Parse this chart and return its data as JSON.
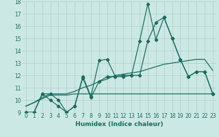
{
  "xlabel": "Humidex (Indice chaleur)",
  "x": [
    0,
    1,
    2,
    3,
    4,
    5,
    6,
    7,
    8,
    9,
    10,
    11,
    12,
    13,
    14,
    15,
    16,
    17,
    18,
    19,
    20,
    21,
    22,
    23
  ],
  "line1": [
    9,
    9,
    10.5,
    10,
    9.5,
    9,
    9.5,
    11.9,
    10.3,
    13.2,
    13.3,
    11.9,
    12.0,
    12.0,
    14.8,
    17.8,
    14.9,
    16.7,
    15.0,
    13.3,
    11.9,
    12.3,
    12.3,
    10.5
  ],
  "line2": [
    9,
    9,
    10.5,
    10.5,
    10.0,
    9.0,
    9.5,
    11.8,
    10.2,
    11.5,
    11.9,
    11.9,
    11.9,
    12.0,
    12.0,
    14.8,
    16.3,
    16.7,
    15.0,
    13.3,
    11.9,
    12.3,
    12.3,
    10.5
  ],
  "line3": [
    9.5,
    9.8,
    10.2,
    10.5,
    10.5,
    10.5,
    10.7,
    11.0,
    11.2,
    11.5,
    11.7,
    12.0,
    12.1,
    12.2,
    12.3,
    12.5,
    12.7,
    12.9,
    13.0,
    13.1,
    13.2,
    13.3,
    13.3,
    12.4
  ],
  "line4": [
    9.5,
    9.8,
    10.1,
    10.4,
    10.4,
    10.4,
    10.5,
    10.5,
    10.5,
    10.5,
    10.5,
    10.5,
    10.5,
    10.5,
    10.5,
    10.5,
    10.5,
    10.5,
    10.5,
    10.5,
    10.5,
    10.5,
    10.5,
    10.5
  ],
  "line_color": "#1a6b5e",
  "bg_color": "#cce8e4",
  "grid_color": "#aacfca",
  "ylim": [
    9,
    18
  ],
  "yticks": [
    9,
    10,
    11,
    12,
    13,
    14,
    15,
    16,
    17,
    18
  ],
  "xticks": [
    0,
    1,
    2,
    3,
    4,
    5,
    6,
    7,
    8,
    9,
    10,
    11,
    12,
    13,
    14,
    15,
    16,
    17,
    18,
    19,
    20,
    21,
    22,
    23
  ],
  "tick_fontsize": 5.5,
  "label_fontsize": 6.5
}
